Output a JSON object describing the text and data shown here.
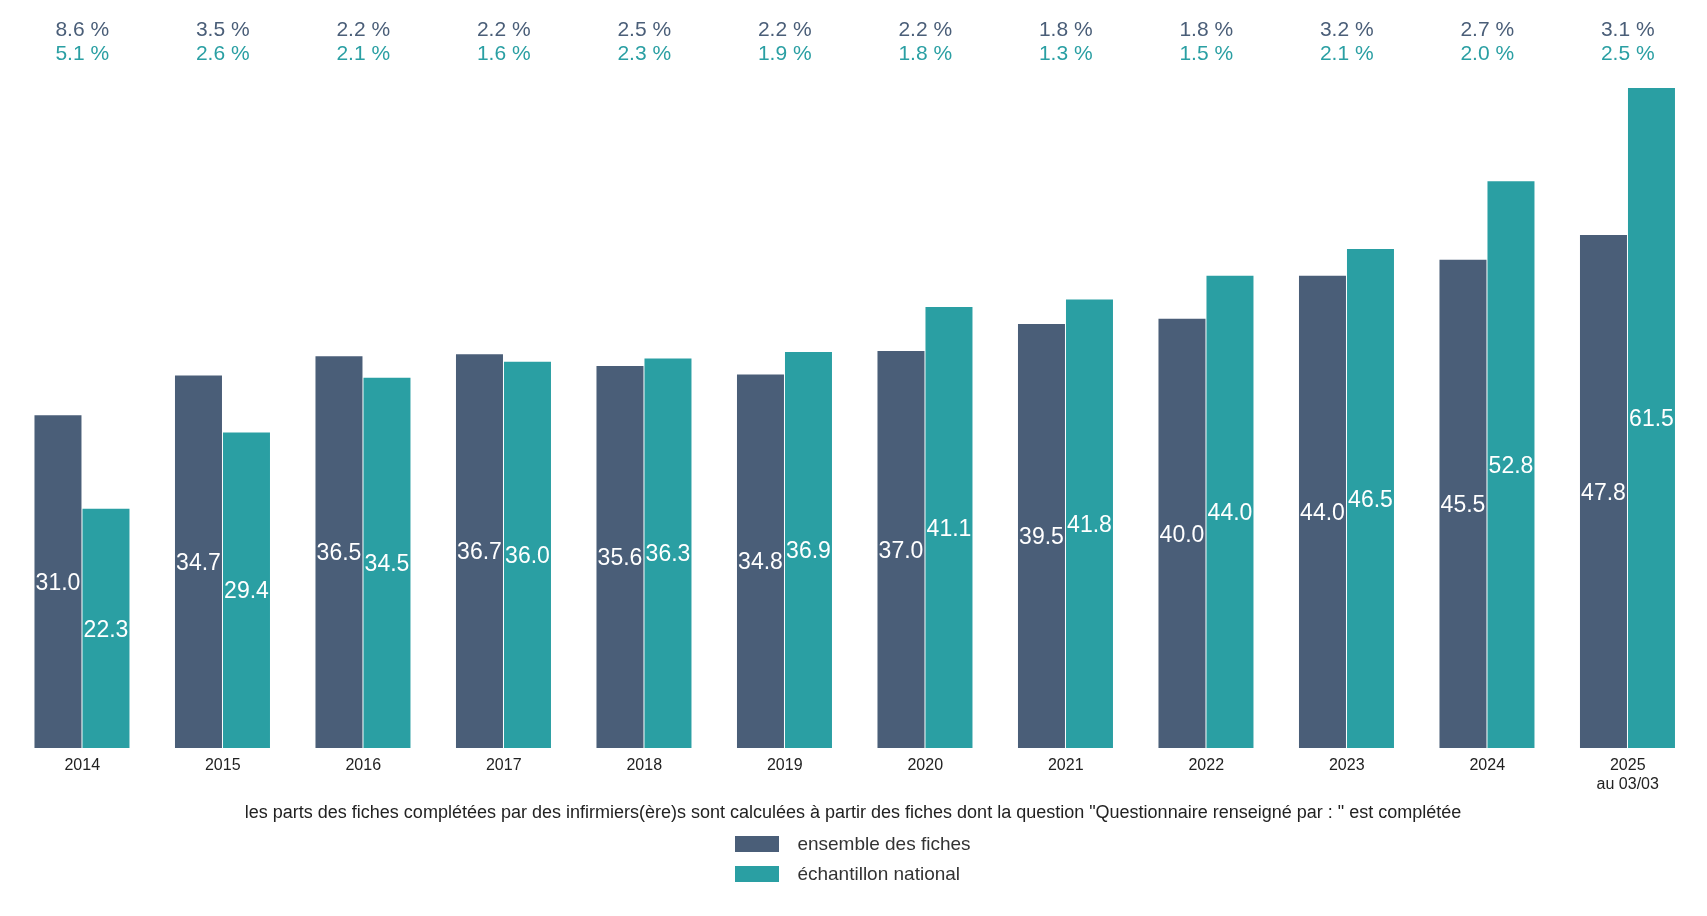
{
  "chart_data": {
    "type": "bar",
    "categories": [
      "2014",
      "2015",
      "2016",
      "2017",
      "2018",
      "2019",
      "2020",
      "2021",
      "2022",
      "2023",
      "2024",
      "2025\nau 03/03"
    ],
    "series": [
      {
        "name": "ensemble des fiches",
        "color": "#4a5e78",
        "values": [
          31.0,
          34.7,
          36.5,
          36.7,
          35.6,
          34.8,
          37.0,
          39.5,
          40.0,
          44.0,
          45.5,
          47.8
        ],
        "value_labels": [
          "31.0",
          "34.7",
          "36.5",
          "36.7",
          "35.6",
          "34.8",
          "37.0",
          "39.5",
          "40.0",
          "44.0",
          "45.5",
          "47.8"
        ]
      },
      {
        "name": "échantillon national",
        "color": "#2a9fa3",
        "values": [
          22.3,
          29.4,
          34.5,
          36.0,
          36.3,
          36.9,
          41.1,
          41.8,
          44.0,
          46.5,
          52.8,
          61.5
        ],
        "value_labels": [
          "22.3",
          "29.4",
          "34.5",
          "36.0",
          "36.3",
          "36.9",
          "41.1",
          "41.8",
          "44.0",
          "46.5",
          "52.8",
          "61.5"
        ]
      }
    ],
    "legend": "bottom",
    "annotations": [
      "8.6 %",
      "3.5 %",
      "2.2 %",
      "2.2 %",
      "2.5 %",
      "2.2 %",
      "2.2 %",
      "1.8 %",
      "1.8 %",
      "3.2 %",
      "2.7 %",
      "3.1 %",
      "5.1 %",
      "2.6 %",
      "2.1 %",
      "1.6 %",
      "2.3 %",
      "1.9 %",
      "1.8 %",
      "1.3 %",
      "1.5 %",
      "2.1 %",
      "2.0 %",
      "2.5 %",
      "les parts des fiches complétées par des infirmiers(ère)s sont calculées à partir des fiches dont la question \"Questionnaire renseigné par : \" est complétée"
    ]
  }
}
